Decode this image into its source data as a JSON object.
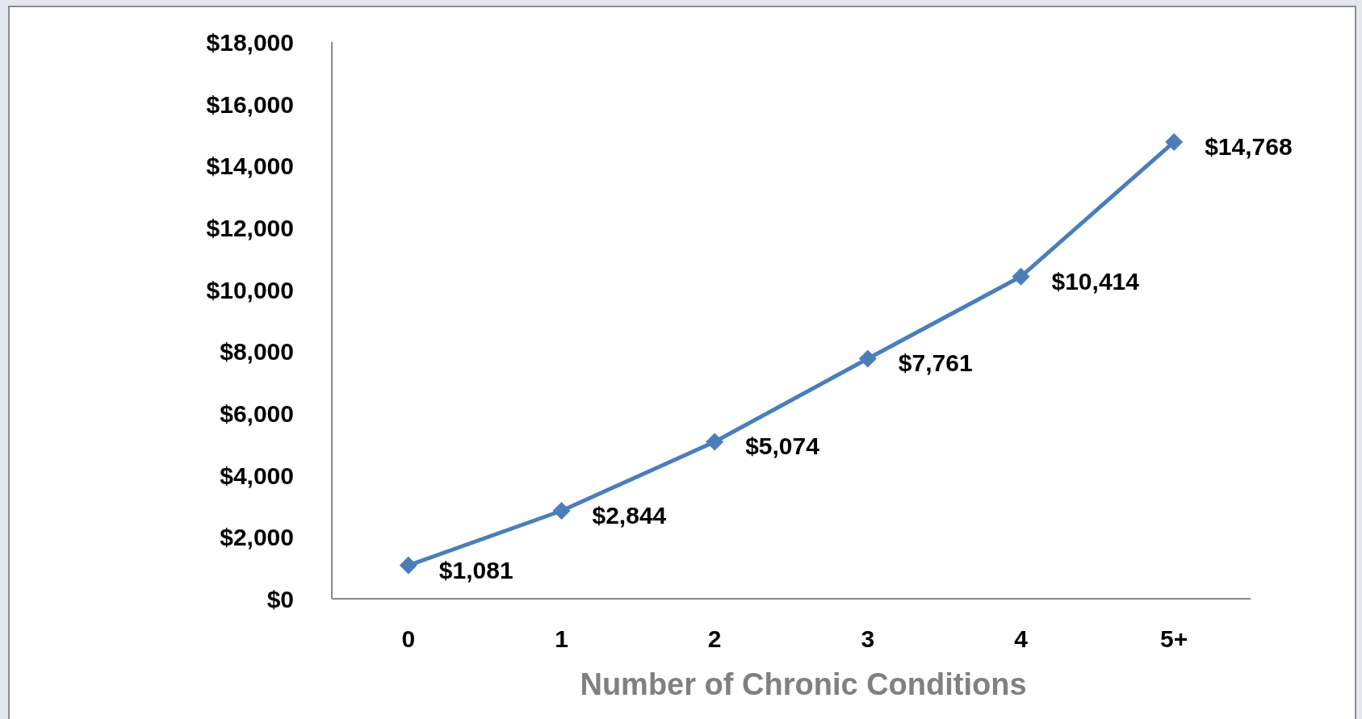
{
  "chart_data": {
    "type": "line",
    "xlabel": "Number of Chronic Conditions",
    "categories": [
      "0",
      "1",
      "2",
      "3",
      "4",
      "5+"
    ],
    "series": [
      {
        "color": "#4a7ebb",
        "values": [
          1081,
          2844,
          5074,
          7761,
          10414,
          14768
        ],
        "value_labels": [
          "$1,081",
          "$2,844",
          "$5,074",
          "$7,761",
          "$10,414",
          "$14,768"
        ]
      }
    ],
    "ylim": [
      0,
      18000
    ],
    "yticks": [
      {
        "value": 0,
        "label": "$0"
      },
      {
        "value": 2000,
        "label": "$2,000"
      },
      {
        "value": 4000,
        "label": "$4,000"
      },
      {
        "value": 6000,
        "label": "$6,000"
      },
      {
        "value": 8000,
        "label": "$8,000"
      },
      {
        "value": 10000,
        "label": "$10,000"
      },
      {
        "value": 12000,
        "label": "$12,000"
      },
      {
        "value": 14000,
        "label": "$14,000"
      },
      {
        "value": 16000,
        "label": "$16,000"
      },
      {
        "value": 18000,
        "label": "$18,000"
      }
    ],
    "marker": "diamond",
    "line_style": "solid"
  }
}
